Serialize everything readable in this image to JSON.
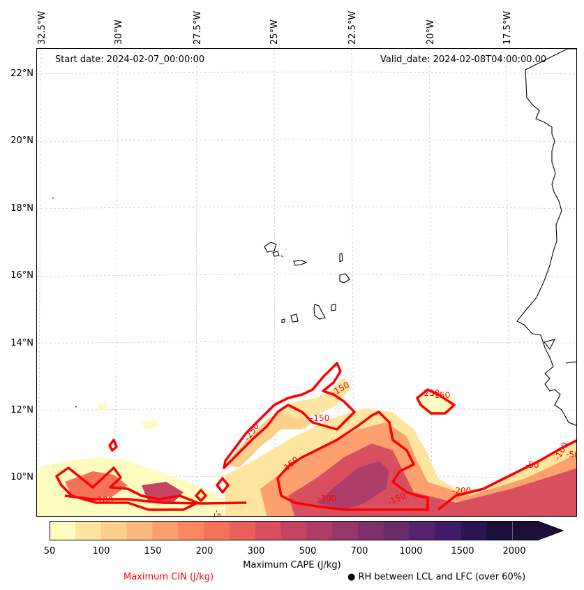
{
  "map": {
    "start_date": "Start date: 2024-02-07_00:00:00",
    "valid_date": "Valid_date: 2024-02-08T04:00:00.00",
    "lon_labels": [
      "32.5°W",
      "30°W",
      "27.5°W",
      "25°W",
      "22.5°W",
      "20°W",
      "17.5°W"
    ],
    "lat_labels": [
      "22°N",
      "20°N",
      "18°N",
      "16°N",
      "14°N",
      "12°N",
      "10°N"
    ],
    "contour_labels": [
      "-150",
      "-250",
      "-150",
      "-150",
      "-100",
      "-250",
      "-150",
      "-300",
      "-50",
      "-150",
      "-200",
      "-100",
      "-50",
      "-50"
    ],
    "colors": {
      "cin_contour": "#ff0000",
      "coast": "#000000",
      "grid": "#cccccc"
    }
  },
  "colorbar": {
    "title": "Maximum CAPE (J/kg)",
    "ticks": [
      "50",
      "100",
      "150",
      "200",
      "300",
      "500",
      "700",
      "1000",
      "1500",
      "2000"
    ],
    "colors": [
      "#fefdbf",
      "#fee6a0",
      "#fed08c",
      "#fdb97e",
      "#fca16e",
      "#fb8761",
      "#f3735a",
      "#e8605c",
      "#d8505f",
      "#c34562",
      "#ad3c68",
      "#963669",
      "#7f2f69",
      "#692a6a",
      "#55236b",
      "#421a6a",
      "#2b1551",
      "#1b0f3a"
    ]
  },
  "legend": {
    "cin": "Maximum CIN (J/kg)",
    "rh": "● RH between LCL and LFC (over 60%)"
  }
}
